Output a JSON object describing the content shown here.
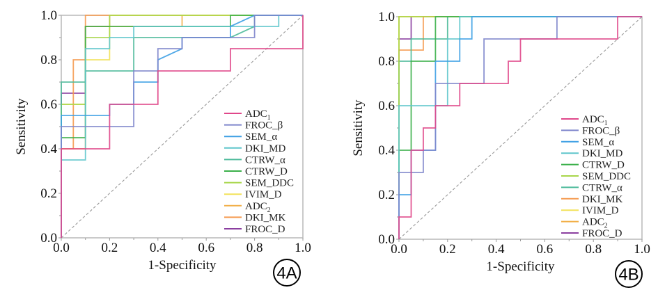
{
  "chart_data": [
    {
      "type": "line",
      "panel_label": "4A",
      "title": "",
      "xlabel": "1-Specificity",
      "ylabel": "Sensitivity",
      "xlim": [
        0,
        1
      ],
      "ylim": [
        0,
        1
      ],
      "xticks": [
        "0.0",
        "0.2",
        "0.4",
        "0.6",
        "0.8",
        "1.0"
      ],
      "yticks": [
        "0.0",
        "0.2",
        "0.4",
        "0.6",
        "0.8",
        "1.0"
      ],
      "grid": false,
      "legend_position": "bottom-right",
      "reference_line": "diagonal-dashed",
      "series": [
        {
          "name": "ADC1",
          "label": "ADC",
          "sub": "1",
          "color": "#e0478a",
          "points": [
            [
              0,
              0
            ],
            [
              0,
              0.4
            ],
            [
              0.1,
              0.4
            ],
            [
              0.2,
              0.4
            ],
            [
              0.2,
              0.55
            ],
            [
              0.2,
              0.6
            ],
            [
              0.4,
              0.6
            ],
            [
              0.4,
              0.75
            ],
            [
              0.7,
              0.75
            ],
            [
              0.7,
              0.85
            ],
            [
              1,
              0.85
            ],
            [
              1,
              1
            ]
          ]
        },
        {
          "name": "FROC_β",
          "label": "FROC_β",
          "sub": "",
          "color": "#7f86cc",
          "points": [
            [
              0,
              0
            ],
            [
              0,
              0.5
            ],
            [
              0.3,
              0.5
            ],
            [
              0.3,
              0.75
            ],
            [
              0.4,
              0.75
            ],
            [
              0.4,
              0.85
            ],
            [
              0.5,
              0.85
            ],
            [
              0.5,
              0.9
            ],
            [
              0.8,
              0.9
            ],
            [
              0.8,
              1
            ],
            [
              1,
              1
            ]
          ]
        },
        {
          "name": "SEM_α",
          "label": "SEM_α",
          "sub": "",
          "color": "#3ea0e4",
          "points": [
            [
              0,
              0
            ],
            [
              0,
              0.55
            ],
            [
              0.2,
              0.55
            ],
            [
              0.2,
              0.6
            ],
            [
              0.3,
              0.6
            ],
            [
              0.3,
              0.7
            ],
            [
              0.4,
              0.7
            ],
            [
              0.4,
              0.8
            ],
            [
              0.5,
              0.85
            ],
            [
              0.5,
              0.9
            ],
            [
              0.7,
              0.9
            ],
            [
              0.7,
              0.95
            ],
            [
              0.8,
              1
            ],
            [
              1,
              1
            ]
          ]
        },
        {
          "name": "DKI_MD",
          "label": "DKI_MD",
          "sub": "",
          "color": "#5fc6cc",
          "points": [
            [
              0,
              0
            ],
            [
              0,
              0.35
            ],
            [
              0.1,
              0.35
            ],
            [
              0.1,
              0.85
            ],
            [
              0.2,
              0.85
            ],
            [
              0.2,
              0.9
            ],
            [
              0.3,
              0.9
            ],
            [
              0.3,
              0.95
            ],
            [
              0.9,
              0.95
            ],
            [
              0.9,
              1
            ],
            [
              1,
              1
            ]
          ]
        },
        {
          "name": "CTRW_α",
          "label": "CTRW_α",
          "sub": "",
          "color": "#4cba9a",
          "points": [
            [
              0,
              0
            ],
            [
              0,
              0.7
            ],
            [
              0.1,
              0.7
            ],
            [
              0.1,
              0.75
            ],
            [
              0.3,
              0.75
            ],
            [
              0.3,
              0.9
            ],
            [
              0.7,
              0.9
            ],
            [
              0.8,
              0.95
            ],
            [
              0.8,
              1
            ],
            [
              1,
              1
            ]
          ]
        },
        {
          "name": "CTRW_D",
          "label": "CTRW_D",
          "sub": "",
          "color": "#3bb04a",
          "points": [
            [
              0,
              0
            ],
            [
              0,
              0.45
            ],
            [
              0.1,
              0.45
            ],
            [
              0.1,
              0.95
            ],
            [
              0.5,
              0.95
            ],
            [
              0.5,
              0.95
            ],
            [
              0.7,
              0.95
            ],
            [
              0.7,
              1
            ],
            [
              1,
              1
            ]
          ]
        },
        {
          "name": "SEM_DDC",
          "label": "SEM_DDC",
          "sub": "",
          "color": "#a8d64a",
          "points": [
            [
              0,
              0
            ],
            [
              0,
              0.6
            ],
            [
              0.1,
              0.6
            ],
            [
              0.1,
              0.9
            ],
            [
              0.2,
              0.9
            ],
            [
              0.2,
              0.95
            ],
            [
              0.2,
              1
            ],
            [
              1,
              1
            ]
          ]
        },
        {
          "name": "IVIM_D",
          "label": "IVIM_D",
          "sub": "",
          "color": "#f2e25a",
          "points": [
            [
              0,
              0
            ],
            [
              0,
              0.6
            ],
            [
              0.1,
              0.6
            ],
            [
              0.1,
              0.8
            ],
            [
              0.2,
              0.8
            ],
            [
              0.2,
              0.9
            ],
            [
              0.2,
              1
            ],
            [
              1,
              1
            ]
          ]
        },
        {
          "name": "ADC2",
          "label": "ADC",
          "sub": "2",
          "color": "#f2b04a",
          "points": [
            [
              0,
              0
            ],
            [
              0,
              0.4
            ],
            [
              0.1,
              0.4
            ],
            [
              0.1,
              0.95
            ],
            [
              0.5,
              0.95
            ],
            [
              0.5,
              1
            ],
            [
              1,
              1
            ]
          ]
        },
        {
          "name": "DKI_MK",
          "label": "DKI_MK",
          "sub": "",
          "color": "#f59a4f",
          "points": [
            [
              0,
              0
            ],
            [
              0,
              0.4
            ],
            [
              0.05,
              0.4
            ],
            [
              0.05,
              0.8
            ],
            [
              0.1,
              0.8
            ],
            [
              0.1,
              1
            ],
            [
              1,
              1
            ]
          ]
        },
        {
          "name": "FROC_D",
          "label": "FROC_D",
          "sub": "",
          "color": "#8b3fa0",
          "points": [
            [
              0,
              0
            ],
            [
              0,
              0.65
            ],
            [
              0.1,
              0.65
            ],
            [
              0.1,
              0.95
            ],
            [
              0.2,
              0.95
            ],
            [
              0.2,
              1
            ],
            [
              1,
              1
            ]
          ]
        }
      ]
    },
    {
      "type": "line",
      "panel_label": "4B",
      "title": "",
      "xlabel": "1-Specificity",
      "ylabel": "Sensitivity",
      "xlim": [
        0,
        1
      ],
      "ylim": [
        0,
        1
      ],
      "xticks": [
        "0.0",
        "0.2",
        "0.4",
        "0.6",
        "0.8",
        "1.0"
      ],
      "yticks": [
        "0.0",
        "0.2",
        "0.4",
        "0.6",
        "0.8",
        "1.0"
      ],
      "grid": false,
      "legend_position": "bottom-right",
      "reference_line": "diagonal-dashed",
      "series": [
        {
          "name": "ADC1",
          "label": "ADC",
          "sub": "1",
          "color": "#e0478a",
          "points": [
            [
              0,
              0
            ],
            [
              0,
              0.1
            ],
            [
              0.05,
              0.1
            ],
            [
              0.05,
              0.4
            ],
            [
              0.1,
              0.4
            ],
            [
              0.1,
              0.5
            ],
            [
              0.15,
              0.5
            ],
            [
              0.15,
              0.6
            ],
            [
              0.25,
              0.6
            ],
            [
              0.25,
              0.7
            ],
            [
              0.45,
              0.7
            ],
            [
              0.45,
              0.8
            ],
            [
              0.5,
              0.8
            ],
            [
              0.5,
              0.9
            ],
            [
              0.9,
              0.9
            ],
            [
              0.9,
              1
            ],
            [
              1,
              1
            ]
          ]
        },
        {
          "name": "FROC_β",
          "label": "FROC_β",
          "sub": "",
          "color": "#7f86cc",
          "points": [
            [
              0,
              0
            ],
            [
              0,
              0.3
            ],
            [
              0.1,
              0.3
            ],
            [
              0.1,
              0.4
            ],
            [
              0.15,
              0.4
            ],
            [
              0.15,
              0.7
            ],
            [
              0.35,
              0.7
            ],
            [
              0.35,
              0.9
            ],
            [
              0.65,
              0.9
            ],
            [
              0.65,
              1
            ],
            [
              1,
              1
            ]
          ]
        },
        {
          "name": "SEM_α",
          "label": "SEM_α",
          "sub": "",
          "color": "#3ea0e4",
          "points": [
            [
              0,
              0
            ],
            [
              0,
              0.2
            ],
            [
              0.05,
              0.2
            ],
            [
              0.05,
              0.4
            ],
            [
              0.15,
              0.4
            ],
            [
              0.15,
              0.8
            ],
            [
              0.25,
              0.8
            ],
            [
              0.25,
              0.9
            ],
            [
              0.3,
              0.9
            ],
            [
              0.3,
              1
            ],
            [
              1,
              1
            ]
          ]
        },
        {
          "name": "DKI_MD",
          "label": "DKI_MD",
          "sub": "",
          "color": "#5fc6cc",
          "points": [
            [
              0,
              0
            ],
            [
              0,
              0.6
            ],
            [
              0.05,
              0.6
            ],
            [
              0.2,
              0.6
            ],
            [
              0.2,
              0.8
            ],
            [
              0.2,
              0.9
            ],
            [
              0.25,
              0.9
            ],
            [
              0.25,
              1
            ],
            [
              1,
              1
            ]
          ]
        },
        {
          "name": "CTRW_D",
          "label": "CTRW_D",
          "sub": "",
          "color": "#3bb04a",
          "points": [
            [
              0,
              0
            ],
            [
              0,
              0.4
            ],
            [
              0.05,
              0.4
            ],
            [
              0.05,
              0.8
            ],
            [
              0.15,
              0.8
            ],
            [
              0.15,
              0.9
            ],
            [
              0.15,
              1
            ],
            [
              1,
              1
            ]
          ]
        },
        {
          "name": "SEM_DDC",
          "label": "SEM_DDC",
          "sub": "",
          "color": "#a8d64a",
          "points": [
            [
              0,
              0
            ],
            [
              0,
              1
            ],
            [
              1,
              1
            ]
          ]
        },
        {
          "name": "CTRW_α",
          "label": "CTRW_α",
          "sub": "",
          "color": "#4cba9a",
          "points": [
            [
              0,
              0
            ],
            [
              0,
              0.8
            ],
            [
              0.05,
              0.8
            ],
            [
              0.05,
              0.9
            ],
            [
              0.2,
              0.9
            ],
            [
              0.2,
              1
            ],
            [
              1,
              1
            ]
          ]
        },
        {
          "name": "DKI_MK",
          "label": "DKI_MK",
          "sub": "",
          "color": "#f59a4f",
          "points": [
            [
              0,
              0
            ],
            [
              0,
              0.85
            ],
            [
              0.1,
              0.85
            ],
            [
              0.1,
              1
            ],
            [
              1,
              1
            ]
          ]
        },
        {
          "name": "IVIM_D",
          "label": "IVIM_D",
          "sub": "",
          "color": "#f2e25a",
          "points": [
            [
              0,
              0
            ],
            [
              0,
              1
            ],
            [
              1,
              1
            ]
          ]
        },
        {
          "name": "ADC2",
          "label": "ADC",
          "sub": "2",
          "color": "#f2b04a",
          "points": [
            [
              0,
              0
            ],
            [
              0,
              1
            ],
            [
              1,
              1
            ]
          ]
        },
        {
          "name": "FROC_D",
          "label": "FROC_D",
          "sub": "",
          "color": "#8b3fa0",
          "points": [
            [
              0,
              0
            ],
            [
              0,
              0.9
            ],
            [
              0.05,
              0.9
            ],
            [
              0.05,
              1
            ],
            [
              0.1,
              1
            ],
            [
              1,
              1
            ]
          ]
        }
      ]
    }
  ]
}
